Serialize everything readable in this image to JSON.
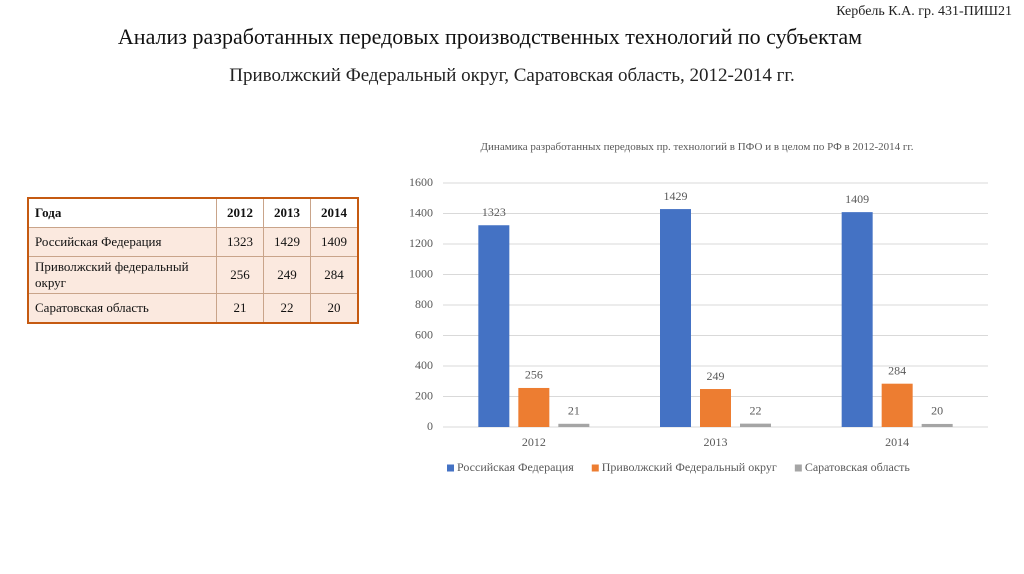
{
  "author": "Кербель К.А. гр. 431-ПИШ21",
  "title": "Анализ разработанных передовых производственных технологий по субъектам",
  "subtitle": "Приволжский Федеральный округ, Саратовская область, 2012-2014 гг.",
  "table": {
    "header": [
      "Года",
      "2012",
      "2013",
      "2014"
    ],
    "rows": [
      [
        "Российская Федерация",
        1323,
        1429,
        1409
      ],
      [
        "Приволжский федеральный округ",
        256,
        249,
        284
      ],
      [
        "Саратовская область",
        21,
        22,
        20
      ]
    ]
  },
  "chart_data": {
    "type": "bar",
    "title": "Динамика разработанных передовых пр. технологий в ПФО и в целом по РФ в 2012-2014 гг.",
    "categories": [
      "2012",
      "2013",
      "2014"
    ],
    "series": [
      {
        "name": "Российская Федерация",
        "color": "#4472c4",
        "values": [
          1323,
          1429,
          1409
        ]
      },
      {
        "name": "Приволжский Федеральный округ",
        "color": "#ed7d31",
        "values": [
          256,
          249,
          284
        ]
      },
      {
        "name": "Саратовская область",
        "color": "#a5a5a5",
        "values": [
          21,
          22,
          20
        ]
      }
    ],
    "ylim": [
      0,
      1600
    ],
    "yticks": [
      0,
      200,
      400,
      600,
      800,
      1000,
      1200,
      1400,
      1600
    ],
    "grid": true,
    "legend": "bottom"
  }
}
